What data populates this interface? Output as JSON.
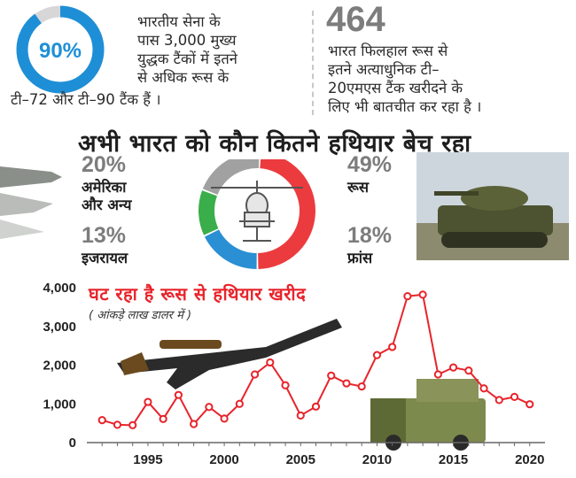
{
  "colors": {
    "accent_blue": "#1e8fd6",
    "russia_red": "#ec3b3e",
    "usa_grey": "#a1a1a1",
    "israel_green": "#3aae4a",
    "france_blue": "#2a8fd3",
    "line_red": "#e8242b"
  },
  "stat_left": {
    "percent": "90%",
    "percent_value": 90,
    "lines": [
      "भारतीय सेना के",
      "पास 3,000 मुख्य",
      "युद्धक टैंकों में इतने",
      "से अधिक रूस के",
      "टी–72 और टी–90 टैंक हैं ।"
    ]
  },
  "stat_right": {
    "number": "464",
    "lines": [
      "भारत फिलहाल रूस से",
      "इतने अत्याधुनिक टी–",
      "20एमएस टैंक खरीदने के",
      "लिए भी बातचीत कर रहा है ।"
    ]
  },
  "donut": {
    "title": "अभी भारत को कौन कितने हथियार बेच रहा",
    "slices": [
      {
        "label": "रूस",
        "percent_text": "49%",
        "value": 49,
        "color": "#ec3b3e"
      },
      {
        "label": "फ्रांस",
        "percent_text": "18%",
        "value": 18,
        "color": "#2a8fd3"
      },
      {
        "label": "इजरायल",
        "percent_text": "13%",
        "value": 13,
        "color": "#3aae4a"
      },
      {
        "label": "अमेरिका और अन्य",
        "percent_text": "20%",
        "value": 20,
        "color": "#a1a1a1"
      }
    ],
    "label_usa_1": "अमेरिका",
    "label_usa_2": "और अन्य"
  },
  "chart_data": {
    "type": "line",
    "title": "घट रहा है रूस से हथियार खरीद",
    "subtitle": "( आंकड़े लाख डालर में )",
    "x": [
      1992,
      1993,
      1994,
      1995,
      1996,
      1997,
      1998,
      1999,
      2000,
      2001,
      2002,
      2003,
      2004,
      2005,
      2006,
      2007,
      2008,
      2009,
      2010,
      2011,
      2012,
      2013,
      2014,
      2015,
      2016,
      2017,
      2018,
      2019,
      2020
    ],
    "values": [
      580,
      460,
      450,
      1050,
      610,
      1230,
      480,
      920,
      620,
      1000,
      1760,
      2070,
      1480,
      700,
      930,
      1730,
      1530,
      1450,
      2260,
      2470,
      3780,
      3820,
      1760,
      1940,
      1860,
      1400,
      1100,
      1180,
      990
    ],
    "xlim": [
      1991,
      2021
    ],
    "ylim": [
      0,
      4000
    ],
    "xticks": [
      1995,
      2000,
      2005,
      2010,
      2015,
      2020
    ],
    "yticks": [
      0,
      1000,
      2000,
      3000,
      4000
    ],
    "ytick_labels": [
      "0",
      "1,000",
      "2,000",
      "3,000",
      "4,000"
    ],
    "grid": false
  }
}
